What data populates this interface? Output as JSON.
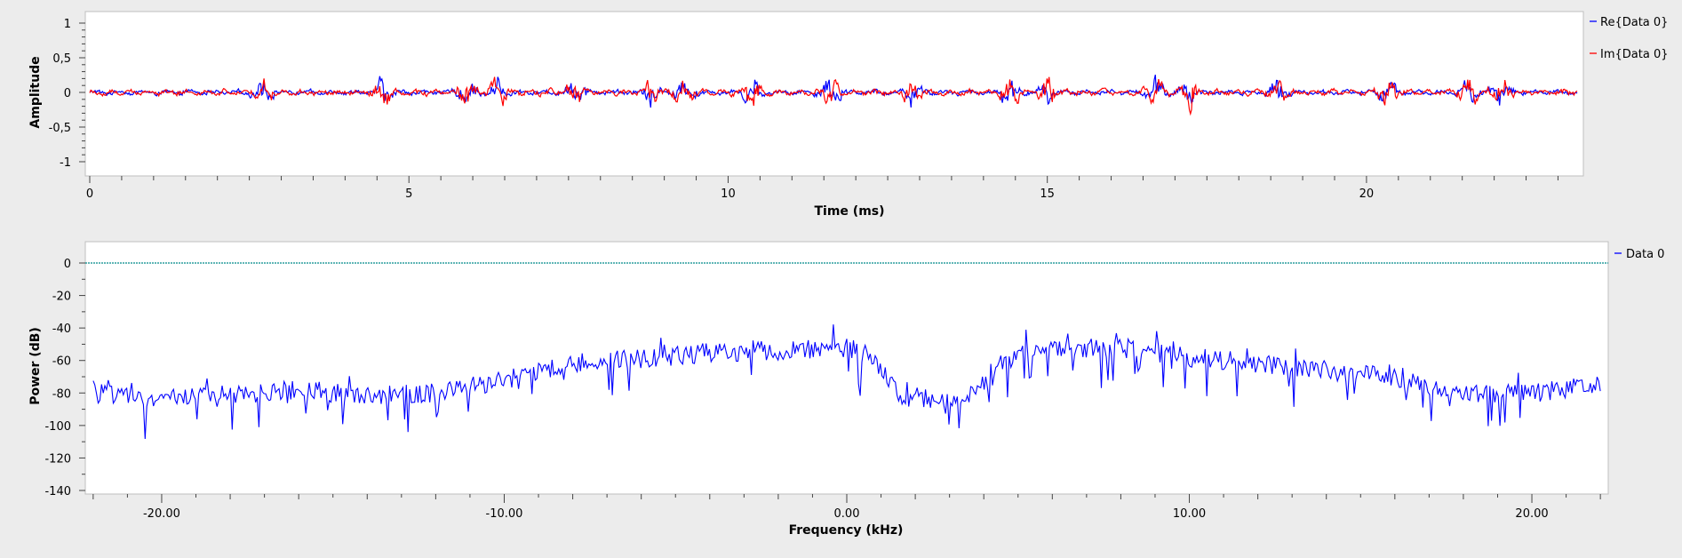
{
  "chart_data": [
    {
      "type": "line",
      "title": "",
      "xlabel": "Time (ms)",
      "ylabel": "Amplitude",
      "xlim": [
        0,
        23.3
      ],
      "ylim": [
        -1.15,
        1.15
      ],
      "xticks": [
        0,
        5,
        10,
        15,
        20
      ],
      "xtick_labels": [
        "0",
        "5",
        "10",
        "15",
        "20"
      ],
      "yticks": [
        1,
        0.5,
        0,
        -0.5,
        -1
      ],
      "ytick_labels": [
        "1",
        "0,5",
        "0",
        "-0,5",
        "-1"
      ],
      "grid": false,
      "legend_position": "right",
      "burst_centers_ms": [
        2.7,
        4.6,
        5.9,
        6.4,
        7.6,
        8.8,
        9.3,
        10.4,
        11.6,
        12.9,
        14.4,
        15.0,
        16.7,
        17.2,
        18.6,
        20.3,
        21.6,
        22.1
      ],
      "series": [
        {
          "name": "Re{Data 0}",
          "color": "#0000ff",
          "baseline_amplitude": 0.06,
          "burst_amplitude": 0.26
        },
        {
          "name": "Im{Data 0}",
          "color": "#ff0000",
          "baseline_amplitude": 0.07,
          "burst_amplitude": 0.27
        }
      ]
    },
    {
      "type": "line",
      "title": "",
      "xlabel": "Frequency (kHz)",
      "ylabel": "Power (dB)",
      "xlim": [
        -22.1,
        22.1
      ],
      "ylim": [
        -145,
        10
      ],
      "xticks": [
        -20,
        -10,
        0,
        10,
        20
      ],
      "xtick_labels": [
        "-20.00",
        "-10.00",
        "0.00",
        "10.00",
        "20.00"
      ],
      "yticks": [
        0,
        -20,
        -40,
        -60,
        -80,
        -100,
        -120,
        -140
      ],
      "ytick_labels": [
        "0",
        "-20",
        "-40",
        "-60",
        "-80",
        "-100",
        "-120",
        "-140"
      ],
      "grid": false,
      "legend_position": "right",
      "reference_line": {
        "y": 0,
        "color": "#008b8b"
      },
      "series": [
        {
          "name": "Data 0",
          "color": "#0000ff",
          "envelope_x": [
            -22,
            -20,
            -18,
            -16,
            -14,
            -12,
            -10,
            -8,
            -6,
            -4,
            -2,
            0,
            0.8,
            1.5,
            3,
            3.8,
            5,
            6.5,
            8,
            10,
            12,
            14,
            16,
            18,
            20,
            22
          ],
          "envelope_y": [
            -80,
            -84,
            -82,
            -78,
            -82,
            -80,
            -72,
            -61,
            -59,
            -55,
            -54,
            -52,
            -58,
            -82,
            -84,
            -78,
            -55,
            -53,
            -52,
            -58,
            -62,
            -66,
            -70,
            -80,
            -80,
            -75
          ]
        }
      ]
    }
  ]
}
